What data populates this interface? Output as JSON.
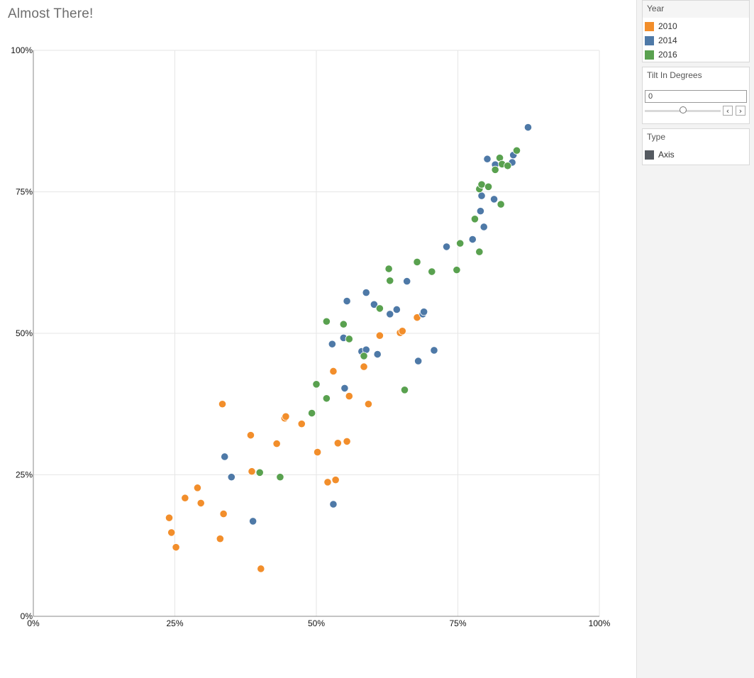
{
  "page": {
    "title": "Almost There!"
  },
  "sidebar": {
    "year_card": {
      "title": "Year",
      "items": [
        {
          "label": "2010",
          "color": "#f28e2b"
        },
        {
          "label": "2014",
          "color": "#4e79a7"
        },
        {
          "label": "2016",
          "color": "#59a14f"
        }
      ]
    },
    "tilt_card": {
      "title": "Tilt In Degrees",
      "value": "0",
      "slider_value": 0.5,
      "prev_icon": "chevron-left-icon",
      "next_icon": "chevron-right-icon"
    },
    "type_card": {
      "title": "Type",
      "items": [
        {
          "label": "Axis",
          "color": "#555a61"
        }
      ]
    }
  },
  "chart_data": {
    "type": "scatter",
    "title": "Almost There!",
    "xlabel": "",
    "ylabel": "",
    "xlim": [
      0,
      100
    ],
    "ylim": [
      0,
      100
    ],
    "x_ticks": [
      "0%",
      "25%",
      "50%",
      "75%",
      "100%"
    ],
    "y_ticks": [
      "0%",
      "25%",
      "50%",
      "75%",
      "100%"
    ],
    "grid": true,
    "legend_position": "right",
    "series": [
      {
        "name": "2010",
        "color": "#f28e2b",
        "points": [
          [
            24,
            17.4
          ],
          [
            24.4,
            14.8
          ],
          [
            25.2,
            12.2
          ],
          [
            26.8,
            20.9
          ],
          [
            29,
            22.7
          ],
          [
            29.6,
            20
          ],
          [
            33,
            13.7
          ],
          [
            33.4,
            37.5
          ],
          [
            33.6,
            18.1
          ],
          [
            38.4,
            32
          ],
          [
            38.6,
            25.6
          ],
          [
            40.2,
            8.4
          ],
          [
            43,
            30.5
          ],
          [
            44.4,
            35
          ],
          [
            44.6,
            35.3
          ],
          [
            47.4,
            34
          ],
          [
            50.2,
            29
          ],
          [
            52,
            23.7
          ],
          [
            53,
            43.3
          ],
          [
            53.4,
            24.1
          ],
          [
            53.8,
            30.6
          ],
          [
            55.4,
            30.9
          ],
          [
            55.8,
            38.9
          ],
          [
            58.4,
            44.1
          ],
          [
            59.2,
            37.5
          ],
          [
            61.2,
            49.6
          ],
          [
            64.8,
            50.1
          ],
          [
            65.2,
            50.4
          ],
          [
            67.8,
            52.8
          ]
        ]
      },
      {
        "name": "2014",
        "color": "#4e79a7",
        "points": [
          [
            33.8,
            28.2
          ],
          [
            35,
            24.6
          ],
          [
            38.8,
            16.8
          ],
          [
            52.8,
            48.1
          ],
          [
            53,
            19.8
          ],
          [
            54.8,
            49.2
          ],
          [
            55,
            40.3
          ],
          [
            55.4,
            55.7
          ],
          [
            58,
            46.8
          ],
          [
            58.8,
            47.1
          ],
          [
            58.8,
            57.2
          ],
          [
            60.2,
            55.1
          ],
          [
            60.8,
            46.3
          ],
          [
            63,
            53.4
          ],
          [
            64.2,
            54.2
          ],
          [
            66,
            59.2
          ],
          [
            68,
            45.1
          ],
          [
            68.8,
            53.4
          ],
          [
            69,
            53.8
          ],
          [
            70.8,
            47
          ],
          [
            73,
            65.3
          ],
          [
            77.6,
            66.6
          ],
          [
            79,
            71.6
          ],
          [
            79.2,
            74.3
          ],
          [
            79.6,
            68.8
          ],
          [
            80.2,
            80.8
          ],
          [
            81.4,
            73.7
          ],
          [
            81.6,
            79.8
          ],
          [
            84.6,
            80.2
          ],
          [
            84.8,
            81.5
          ],
          [
            87.4,
            86.4
          ]
        ]
      },
      {
        "name": "2016",
        "color": "#59a14f",
        "points": [
          [
            40,
            25.4
          ],
          [
            43.6,
            24.6
          ],
          [
            50,
            41
          ],
          [
            49.2,
            35.9
          ],
          [
            51.8,
            38.5
          ],
          [
            51.8,
            52.1
          ],
          [
            54.8,
            51.6
          ],
          [
            55.8,
            49
          ],
          [
            58.4,
            46
          ],
          [
            61.2,
            54.4
          ],
          [
            62.8,
            61.4
          ],
          [
            63,
            59.3
          ],
          [
            65.6,
            40
          ],
          [
            67.8,
            62.6
          ],
          [
            70.4,
            60.9
          ],
          [
            74.8,
            61.2
          ],
          [
            75.4,
            65.9
          ],
          [
            78,
            70.2
          ],
          [
            78.8,
            75.5
          ],
          [
            78.8,
            64.4
          ],
          [
            79.2,
            76.3
          ],
          [
            80.4,
            75.9
          ],
          [
            81.6,
            78.9
          ],
          [
            82.4,
            81
          ],
          [
            82.6,
            72.8
          ],
          [
            82.8,
            79.9
          ],
          [
            83.8,
            79.6
          ],
          [
            85.4,
            82.3
          ]
        ]
      }
    ]
  }
}
